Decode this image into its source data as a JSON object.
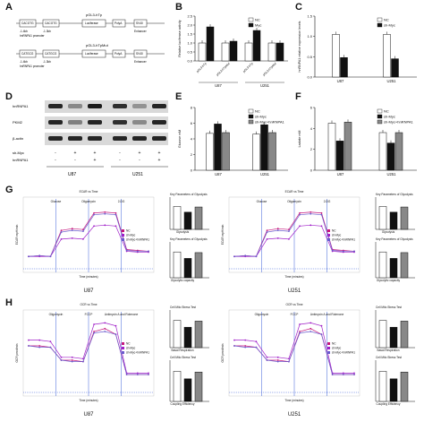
{
  "panel_letters": {
    "A": "A",
    "B": "B",
    "C": "C",
    "D": "D",
    "E": "E",
    "F": "F",
    "G": "G",
    "H": "H"
  },
  "panelA": {
    "construct1_title": "pGL3-hTp",
    "construct2_title": "pGL3-hTpMut",
    "boxes1": [
      "CACGTG",
      "CACGTG",
      "Luciferase",
      "PolyA",
      "SV40",
      "Enhancer"
    ],
    "boxes2": [
      "CATGCG",
      "CATGCG",
      "Luciferase",
      "PolyA",
      "SV40",
      "Enhancer"
    ],
    "caption": "hnRNPA1 promoter",
    "positions": [
      "-1.4kb",
      "-1.3kb"
    ]
  },
  "panelB_chart": {
    "chart_data": {
      "type": "bar",
      "ylabel": "Relative luciferase activity",
      "ylim": [
        0,
        2.5
      ],
      "yticks": [
        "0.0",
        "0.5",
        "1.0",
        "1.5",
        "2.0",
        "2.5"
      ],
      "groups": [
        "U87",
        "U251"
      ],
      "categories": [
        "pGL3-hTp",
        "pGL3-hTpMut",
        "pGL3-hTp",
        "pGL3-hTpMut"
      ],
      "series": [
        {
          "name": "NC",
          "values": [
            1.0,
            1.0,
            1.0,
            1.0
          ]
        },
        {
          "name": "Myc",
          "values": [
            1.9,
            1.1,
            1.7,
            1.0
          ]
        }
      ],
      "legend": "top-right"
    }
  },
  "panelC_chart": {
    "chart_data": {
      "type": "bar",
      "ylabel": "hnRNPA1 relative expression levels",
      "ylim": [
        0,
        1.5
      ],
      "yticks": [
        "0.0",
        "0.5",
        "1.0",
        "1.5"
      ],
      "categories": [
        "U87",
        "U251"
      ],
      "series": [
        {
          "name": "NC",
          "values": [
            1.05,
            1.05
          ]
        },
        {
          "name": "sh-Myc",
          "values": [
            0.48,
            0.45
          ]
        }
      ],
      "legend": "top-right"
    }
  },
  "panelD": {
    "rows": [
      "hnRNPA1",
      "PKM2",
      "β-actin"
    ],
    "shmyc_label": "sh-Myc",
    "hnrnpa1_label": "hnRNPA1",
    "shmyc_marks": [
      "-",
      "+",
      "+",
      "-",
      "+",
      "+"
    ],
    "hnrnpa1_marks": [
      "-",
      "-",
      "+",
      "-",
      "-",
      "+"
    ],
    "cells": [
      "U87",
      "U251"
    ]
  },
  "panelE_chart": {
    "chart_data": {
      "type": "bar",
      "ylabel": "Glucose mM",
      "ylim": [
        0,
        8
      ],
      "yticks": [
        "0",
        "2",
        "4",
        "6",
        "8"
      ],
      "categories": [
        "U87",
        "U251"
      ],
      "series": [
        {
          "name": "NC",
          "values": [
            4.7,
            4.6
          ]
        },
        {
          "name": "sh-Myc",
          "values": [
            5.9,
            5.8
          ]
        },
        {
          "name": "sh-Myc+hnRNPA1",
          "values": [
            4.8,
            4.8
          ]
        }
      ],
      "legend": "top-right"
    }
  },
  "panelF_chart": {
    "chart_data": {
      "type": "bar",
      "ylabel": "Lactate mM",
      "ylim": [
        0,
        6
      ],
      "yticks": [
        "0",
        "2",
        "4",
        "6"
      ],
      "categories": [
        "U87",
        "U251"
      ],
      "series": [
        {
          "name": "NC",
          "values": [
            4.5,
            3.6
          ]
        },
        {
          "name": "sh-Myc",
          "values": [
            2.8,
            2.6
          ]
        },
        {
          "name": "sh-Myc+hnRNPA1",
          "values": [
            4.6,
            3.6
          ]
        }
      ],
      "legend": "top-right"
    }
  },
  "panelG": {
    "cells": [
      "U87",
      "U251"
    ],
    "ylabel": "ECAR mpH/min",
    "xlabel": "Time (minutes)",
    "injections": [
      "Glucose",
      "Oligomycin",
      "2-DG"
    ],
    "header": "ECAR vs Time",
    "legend": [
      "NC",
      "sh-Myc",
      "sh-Myc+hnRNPA1"
    ],
    "side_title1": "Key Parameters of Glycolysis",
    "side_title2": "Key Parameters of Glycolysis",
    "side_xlabels": [
      "Glycolysis",
      "Glycolytic capacity"
    ],
    "chart_data": {
      "type": "line",
      "x": [
        1,
        2,
        3,
        4,
        5,
        6,
        7,
        8,
        9,
        10,
        11,
        12
      ],
      "series": [
        {
          "name": "NC",
          "values": [
            10,
            11,
            10,
            40,
            42,
            41,
            60,
            61,
            60,
            18,
            17,
            16
          ]
        },
        {
          "name": "sh-Myc",
          "values": [
            10,
            10,
            10,
            30,
            31,
            30,
            45,
            46,
            45,
            16,
            15,
            15
          ]
        },
        {
          "name": "sh-Myc+hnRNPA1",
          "values": [
            10,
            11,
            10,
            38,
            40,
            39,
            58,
            59,
            58,
            17,
            16,
            16
          ]
        }
      ]
    }
  },
  "panelH": {
    "cells": [
      "U87",
      "U251"
    ],
    "ylabel": "OCR pmol/min",
    "xlabel": "Time (minutes)",
    "injections": [
      "Oligomycin",
      "FCCP",
      "Antimycin A and Rotenone"
    ],
    "header": "OCR vs Time",
    "legend": [
      "NC",
      "sh-Myc",
      "sh-Myc+hnRNPA1"
    ],
    "side_title1": "Cell Mito Stress Test",
    "side_title2": "Cell Mito Stress Test",
    "side_xlabels": [
      "Basal Respiration",
      "Coupling Efficiency"
    ],
    "chart_data": {
      "type": "line",
      "x": [
        1,
        2,
        3,
        4,
        5,
        6,
        7,
        8,
        9,
        10,
        11,
        12
      ],
      "series": [
        {
          "name": "NC",
          "values": [
            30,
            30,
            29,
            20,
            20,
            19,
            40,
            42,
            38,
            10,
            10,
            10
          ]
        },
        {
          "name": "sh-Myc",
          "values": [
            34,
            34,
            33,
            22,
            22,
            21,
            45,
            46,
            44,
            11,
            11,
            11
          ]
        },
        {
          "name": "sh-Myc+hnRNPA1",
          "values": [
            30,
            29,
            29,
            20,
            19,
            19,
            39,
            40,
            38,
            10,
            10,
            10
          ]
        }
      ]
    }
  },
  "colors": {
    "nc": "#c6177d",
    "shmyc": "#a020c8",
    "rescue": "#6a5acd",
    "bar_dark": "#111111",
    "bar_light": "#ffffff",
    "bar_hatch": "#888888",
    "baseline": "#3a5fd8"
  }
}
